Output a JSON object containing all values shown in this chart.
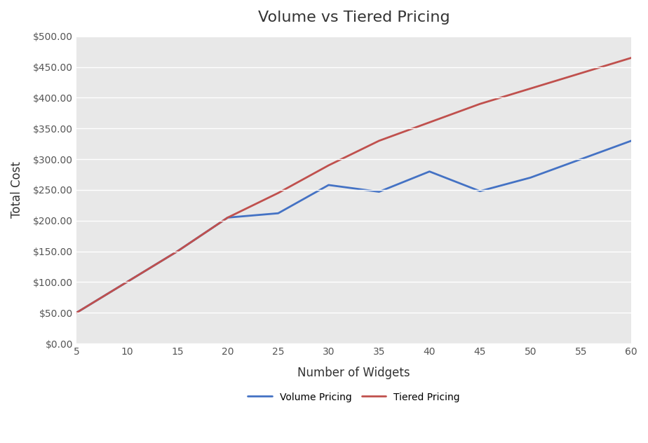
{
  "x": [
    5,
    10,
    15,
    20,
    25,
    30,
    35,
    40,
    45,
    50,
    55,
    60
  ],
  "volume_pricing": [
    50,
    100,
    150,
    205,
    212,
    258,
    247,
    280,
    248,
    270,
    300,
    330
  ],
  "tiered_pricing": [
    50,
    100,
    150,
    205,
    245,
    290,
    330,
    360,
    390,
    415,
    440,
    465
  ],
  "volume_color": "#4472C4",
  "tiered_color": "#C0504D",
  "title": "Volume vs Tiered Pricing",
  "xlabel": "Number of Widgets",
  "ylabel": "Total Cost",
  "xlim": [
    5,
    60
  ],
  "ylim": [
    0,
    500
  ],
  "xticks": [
    5,
    10,
    15,
    20,
    25,
    30,
    35,
    40,
    45,
    50,
    55,
    60
  ],
  "yticks": [
    0,
    50,
    100,
    150,
    200,
    250,
    300,
    350,
    400,
    450,
    500
  ],
  "legend_volume": "Volume Pricing",
  "legend_tiered": "Tiered Pricing",
  "fig_background_color": "#ffffff",
  "plot_background_color": "#e8e8e8",
  "grid_color": "#ffffff",
  "title_fontsize": 16,
  "label_fontsize": 12,
  "tick_fontsize": 10,
  "legend_fontsize": 10,
  "line_width": 2.0,
  "tick_color": "#555555",
  "title_color": "#333333",
  "label_color": "#333333"
}
